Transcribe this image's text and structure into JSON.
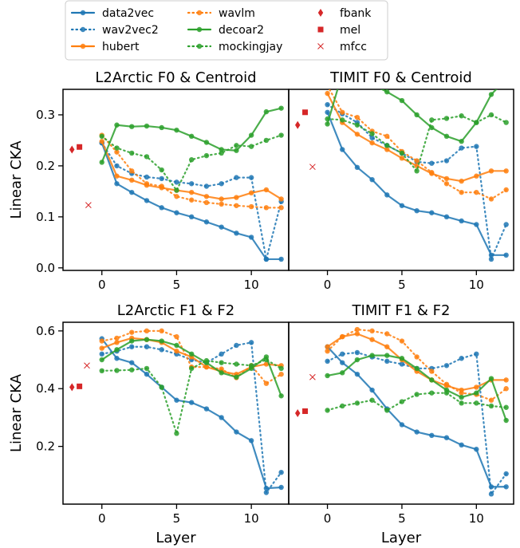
{
  "legend": {
    "position": "top-center",
    "entries": [
      {
        "name": "data2vec",
        "color": "#1f77b4",
        "style": "solid"
      },
      {
        "name": "wav2vec2",
        "color": "#1f77b4",
        "style": "dotted"
      },
      {
        "name": "hubert",
        "color": "#ff7f0e",
        "style": "solid"
      },
      {
        "name": "wavlm",
        "color": "#ff7f0e",
        "style": "dotted"
      },
      {
        "name": "decoar2",
        "color": "#2ca02c",
        "style": "solid"
      },
      {
        "name": "mockingjay",
        "color": "#2ca02c",
        "style": "dotted"
      },
      {
        "name": "fbank",
        "color": "#d62728",
        "marker": "diamond"
      },
      {
        "name": "mel",
        "color": "#d62728",
        "marker": "square"
      },
      {
        "name": "mfcc",
        "color": "#d62728",
        "marker": "x"
      }
    ]
  },
  "chart_data": [
    {
      "type": "line",
      "title": "L2Arctic F0 & Centroid",
      "ylabel": "Linear CKA",
      "xlabel": "",
      "xlim": [
        -2.6,
        12.5
      ],
      "ylim": [
        -0.005,
        0.35
      ],
      "xticks": [
        0,
        5,
        10
      ],
      "yticks": [
        0.0,
        0.1,
        0.2,
        0.3
      ],
      "x": [
        0,
        1,
        2,
        3,
        4,
        5,
        6,
        7,
        8,
        9,
        10,
        11,
        12
      ],
      "series": [
        {
          "name": "data2vec",
          "values": [
            0.245,
            0.165,
            0.148,
            0.132,
            0.118,
            0.108,
            0.1,
            0.09,
            0.08,
            0.068,
            0.06,
            0.017,
            0.017
          ]
        },
        {
          "name": "wav2vec2",
          "values": [
            0.245,
            0.2,
            0.185,
            0.178,
            0.175,
            0.168,
            0.165,
            0.16,
            0.165,
            0.177,
            0.177,
            0.017,
            0.13
          ]
        },
        {
          "name": "hubert",
          "values": [
            0.248,
            0.18,
            0.172,
            0.162,
            0.157,
            0.152,
            0.148,
            0.14,
            0.135,
            0.138,
            0.147,
            0.153,
            0.135
          ]
        },
        {
          "name": "wavlm",
          "values": [
            0.26,
            0.227,
            0.19,
            0.165,
            0.16,
            0.14,
            0.133,
            0.128,
            0.125,
            0.122,
            0.12,
            0.118,
            0.118
          ]
        },
        {
          "name": "decoar2",
          "values": [
            0.207,
            0.28,
            0.277,
            0.278,
            0.275,
            0.27,
            0.258,
            0.246,
            0.232,
            0.23,
            0.26,
            0.306,
            0.313
          ]
        },
        {
          "name": "mockingjay",
          "values": [
            0.258,
            0.235,
            0.225,
            0.218,
            0.192,
            0.152,
            0.212,
            0.22,
            0.225,
            0.24,
            0.238,
            0.25,
            0.26
          ]
        },
        {
          "name": "fbank",
          "points": [
            [
              -2.0,
              0.232
            ]
          ]
        },
        {
          "name": "mel",
          "points": [
            [
              -1.5,
              0.237
            ]
          ]
        },
        {
          "name": "mfcc",
          "points": [
            [
              -0.9,
              0.123
            ]
          ]
        }
      ]
    },
    {
      "type": "line",
      "title": "TIMIT F0 & Centroid",
      "ylabel": "",
      "xlabel": "",
      "xlim": [
        -2.6,
        12.5
      ],
      "ylim": [
        -0.005,
        0.35
      ],
      "xticks": [
        0,
        5,
        10
      ],
      "yticks": [
        0.0,
        0.1,
        0.2,
        0.3
      ],
      "x": [
        0,
        1,
        2,
        3,
        4,
        5,
        6,
        7,
        8,
        9,
        10,
        11,
        12
      ],
      "series": [
        {
          "name": "data2vec",
          "values": [
            0.305,
            0.232,
            0.197,
            0.173,
            0.143,
            0.122,
            0.112,
            0.108,
            0.1,
            0.092,
            0.085,
            0.025,
            0.025
          ]
        },
        {
          "name": "wav2vec2",
          "values": [
            0.32,
            0.302,
            0.285,
            0.255,
            0.24,
            0.225,
            0.208,
            0.205,
            0.21,
            0.235,
            0.238,
            0.017,
            0.085
          ]
        },
        {
          "name": "hubert",
          "values": [
            0.342,
            0.285,
            0.262,
            0.245,
            0.232,
            0.215,
            0.2,
            0.185,
            0.175,
            0.17,
            0.18,
            0.19,
            0.19
          ]
        },
        {
          "name": "wavlm",
          "values": [
            0.357,
            0.305,
            0.295,
            0.268,
            0.258,
            0.228,
            0.21,
            0.187,
            0.165,
            0.148,
            0.148,
            0.135,
            0.153
          ]
        },
        {
          "name": "decoar2",
          "values": [
            0.282,
            0.382,
            0.378,
            0.36,
            0.345,
            0.328,
            0.3,
            0.275,
            0.258,
            0.248,
            0.285,
            0.34,
            0.37
          ]
        },
        {
          "name": "mockingjay",
          "values": [
            0.292,
            0.29,
            0.28,
            0.263,
            0.24,
            0.225,
            0.19,
            0.29,
            0.293,
            0.298,
            0.285,
            0.3,
            0.285
          ]
        },
        {
          "name": "fbank",
          "points": [
            [
              -2.0,
              0.28
            ]
          ]
        },
        {
          "name": "mel",
          "points": [
            [
              -1.5,
              0.305
            ]
          ]
        },
        {
          "name": "mfcc",
          "points": [
            [
              -1.0,
              0.198
            ]
          ]
        }
      ]
    },
    {
      "type": "line",
      "title": "L2Arctic F1 & F2",
      "ylabel": "Linear CKA",
      "xlabel": "Layer",
      "xlim": [
        -2.6,
        12.5
      ],
      "ylim": [
        0.0,
        0.63
      ],
      "xticks": [
        0,
        5,
        10
      ],
      "yticks": [
        0.2,
        0.4,
        0.6
      ],
      "x": [
        0,
        1,
        2,
        3,
        4,
        5,
        6,
        7,
        8,
        9,
        10,
        11,
        12
      ],
      "series": [
        {
          "name": "data2vec",
          "values": [
            0.573,
            0.505,
            0.49,
            0.45,
            0.405,
            0.36,
            0.352,
            0.33,
            0.3,
            0.25,
            0.22,
            0.055,
            0.058
          ]
        },
        {
          "name": "wav2vec2",
          "values": [
            0.52,
            0.53,
            0.545,
            0.545,
            0.535,
            0.52,
            0.5,
            0.49,
            0.52,
            0.55,
            0.56,
            0.04,
            0.11
          ]
        },
        {
          "name": "hubert",
          "values": [
            0.54,
            0.56,
            0.575,
            0.57,
            0.56,
            0.53,
            0.51,
            0.475,
            0.46,
            0.45,
            0.475,
            0.485,
            0.48
          ]
        },
        {
          "name": "wavlm",
          "values": [
            0.565,
            0.575,
            0.595,
            0.6,
            0.6,
            0.58,
            0.475,
            0.475,
            0.468,
            0.438,
            0.48,
            0.418,
            0.45
          ]
        },
        {
          "name": "decoar2",
          "values": [
            0.5,
            0.535,
            0.565,
            0.57,
            0.565,
            0.55,
            0.52,
            0.49,
            0.455,
            0.44,
            0.47,
            0.51,
            0.375
          ]
        },
        {
          "name": "mockingjay",
          "values": [
            0.462,
            0.463,
            0.465,
            0.47,
            0.405,
            0.245,
            0.47,
            0.497,
            0.49,
            0.485,
            0.48,
            0.5,
            0.47
          ]
        },
        {
          "name": "fbank",
          "points": [
            [
              -2.0,
              0.405
            ]
          ]
        },
        {
          "name": "mel",
          "points": [
            [
              -1.5,
              0.408
            ]
          ]
        },
        {
          "name": "mfcc",
          "points": [
            [
              -1.0,
              0.48
            ]
          ]
        }
      ]
    },
    {
      "type": "line",
      "title": "TIMIT F1 & F2",
      "ylabel": "",
      "xlabel": "Layer",
      "xlim": [
        -2.6,
        12.5
      ],
      "ylim": [
        0.0,
        0.63
      ],
      "xticks": [
        0,
        5,
        10
      ],
      "yticks": [
        0.2,
        0.4,
        0.6
      ],
      "x": [
        0,
        1,
        2,
        3,
        4,
        5,
        6,
        7,
        8,
        9,
        10,
        11,
        12
      ],
      "series": [
        {
          "name": "data2vec",
          "values": [
            0.545,
            0.49,
            0.45,
            0.395,
            0.33,
            0.275,
            0.25,
            0.238,
            0.23,
            0.205,
            0.19,
            0.06,
            0.06
          ]
        },
        {
          "name": "wav2vec2",
          "values": [
            0.495,
            0.52,
            0.525,
            0.51,
            0.495,
            0.485,
            0.47,
            0.47,
            0.48,
            0.505,
            0.52,
            0.035,
            0.105
          ]
        },
        {
          "name": "hubert",
          "values": [
            0.545,
            0.58,
            0.59,
            0.57,
            0.545,
            0.5,
            0.46,
            0.43,
            0.41,
            0.395,
            0.405,
            0.43,
            0.43
          ]
        },
        {
          "name": "wavlm",
          "values": [
            0.53,
            0.58,
            0.605,
            0.6,
            0.59,
            0.565,
            0.51,
            0.46,
            0.415,
            0.385,
            0.38,
            0.36,
            0.4
          ]
        },
        {
          "name": "decoar2",
          "values": [
            0.445,
            0.455,
            0.5,
            0.515,
            0.515,
            0.505,
            0.47,
            0.43,
            0.395,
            0.37,
            0.385,
            0.435,
            0.29
          ]
        },
        {
          "name": "mockingjay",
          "values": [
            0.325,
            0.34,
            0.35,
            0.36,
            0.325,
            0.355,
            0.38,
            0.385,
            0.385,
            0.35,
            0.35,
            0.34,
            0.335
          ]
        },
        {
          "name": "fbank",
          "points": [
            [
              -2.0,
              0.315
            ]
          ]
        },
        {
          "name": "mel",
          "points": [
            [
              -1.5,
              0.322
            ]
          ]
        },
        {
          "name": "mfcc",
          "points": [
            [
              -1.0,
              0.44
            ]
          ]
        }
      ]
    }
  ]
}
